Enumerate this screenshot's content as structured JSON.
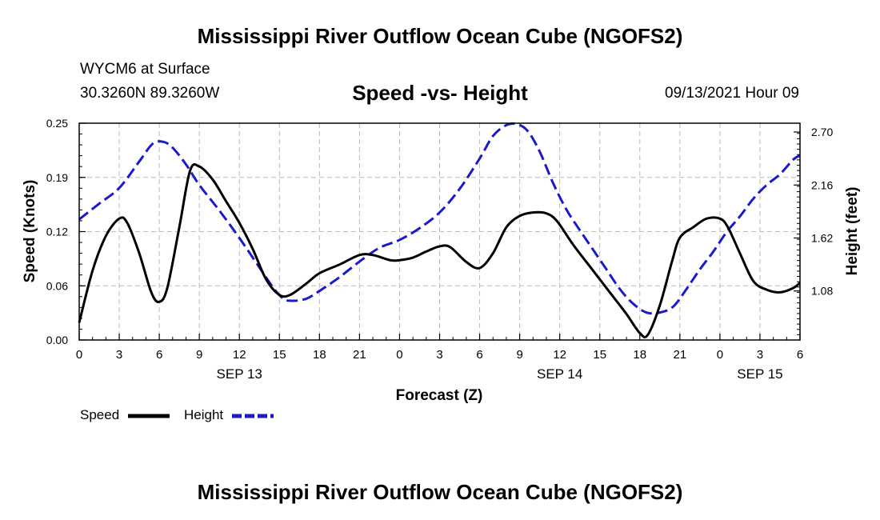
{
  "header": {
    "title": "Mississippi River Outflow Ocean Cube (NGOFS2)",
    "station": "WYCM6 at Surface",
    "coords": "30.3260N  89.3260W",
    "chart_title": "Speed -vs- Height",
    "datetime": "09/13/2021 Hour 09"
  },
  "footer": {
    "title": "Mississippi River Outflow Ocean Cube (NGOFS2)"
  },
  "legend": {
    "speed_label": "Speed",
    "height_label": "Height"
  },
  "colors": {
    "speed": "#000000",
    "height": "#1a1acc",
    "grid": "#bbbbbb"
  },
  "chart_data": {
    "type": "line",
    "title": "Speed -vs- Height",
    "xlabel": "Forecast (Z)",
    "ylabel": "Speed (Knots)",
    "ylabel_right": "Height (feet)",
    "x_range_hours": [
      0,
      54
    ],
    "ylim": [
      0.0,
      0.25
    ],
    "ylim_right": [
      0.58,
      2.79
    ],
    "x_ticks": [
      {
        "h": 0,
        "label": "0"
      },
      {
        "h": 3,
        "label": "3"
      },
      {
        "h": 6,
        "label": "6"
      },
      {
        "h": 9,
        "label": "9"
      },
      {
        "h": 12,
        "label": "12"
      },
      {
        "h": 15,
        "label": "15"
      },
      {
        "h": 18,
        "label": "18"
      },
      {
        "h": 21,
        "label": "21"
      },
      {
        "h": 24,
        "label": "0"
      },
      {
        "h": 27,
        "label": "3"
      },
      {
        "h": 30,
        "label": "6"
      },
      {
        "h": 33,
        "label": "9"
      },
      {
        "h": 36,
        "label": "12"
      },
      {
        "h": 39,
        "label": "15"
      },
      {
        "h": 42,
        "label": "18"
      },
      {
        "h": 45,
        "label": "21"
      },
      {
        "h": 48,
        "label": "0"
      },
      {
        "h": 51,
        "label": "3"
      },
      {
        "h": 54,
        "label": "6"
      }
    ],
    "date_labels": [
      {
        "h": 12,
        "label": "SEP 13"
      },
      {
        "h": 36,
        "label": "SEP 14"
      },
      {
        "h": 51,
        "label": "SEP 15"
      }
    ],
    "y_ticks": [
      "0.00",
      "0.06",
      "0.12",
      "0.19",
      "0.25"
    ],
    "y_tick_values": [
      0.0,
      0.0625,
      0.125,
      0.1875,
      0.25
    ],
    "y_ticks_right": [
      "1.08",
      "1.62",
      "2.16",
      "2.70"
    ],
    "y_tick_values_right": [
      1.08,
      1.62,
      2.16,
      2.7
    ],
    "series": [
      {
        "name": "Speed",
        "axis": "left",
        "style": "solid",
        "points": [
          [
            0,
            0.02
          ],
          [
            1,
            0.08
          ],
          [
            2,
            0.12
          ],
          [
            3,
            0.14
          ],
          [
            3.6,
            0.135
          ],
          [
            4.5,
            0.1
          ],
          [
            5.4,
            0.055
          ],
          [
            6,
            0.044
          ],
          [
            6.6,
            0.06
          ],
          [
            7.5,
            0.13
          ],
          [
            8.3,
            0.195
          ],
          [
            9,
            0.2
          ],
          [
            10,
            0.185
          ],
          [
            11,
            0.16
          ],
          [
            12,
            0.135
          ],
          [
            13,
            0.105
          ],
          [
            14,
            0.07
          ],
          [
            15,
            0.052
          ],
          [
            15.8,
            0.052
          ],
          [
            17,
            0.065
          ],
          [
            18,
            0.077
          ],
          [
            19.5,
            0.087
          ],
          [
            21,
            0.098
          ],
          [
            22,
            0.098
          ],
          [
            23.3,
            0.092
          ],
          [
            24,
            0.092
          ],
          [
            25,
            0.095
          ],
          [
            26,
            0.102
          ],
          [
            27,
            0.108
          ],
          [
            27.8,
            0.107
          ],
          [
            29,
            0.09
          ],
          [
            30,
            0.083
          ],
          [
            31,
            0.1
          ],
          [
            32,
            0.13
          ],
          [
            33,
            0.143
          ],
          [
            34,
            0.147
          ],
          [
            35,
            0.146
          ],
          [
            35.8,
            0.137
          ],
          [
            37,
            0.11
          ],
          [
            38.5,
            0.08
          ],
          [
            40,
            0.05
          ],
          [
            41,
            0.03
          ],
          [
            42,
            0.008
          ],
          [
            42.6,
            0.006
          ],
          [
            43.5,
            0.04
          ],
          [
            44.4,
            0.09
          ],
          [
            45,
            0.118
          ],
          [
            46,
            0.13
          ],
          [
            47,
            0.14
          ],
          [
            48,
            0.14
          ],
          [
            48.6,
            0.13
          ],
          [
            49.5,
            0.1
          ],
          [
            50.5,
            0.068
          ],
          [
            51.5,
            0.058
          ],
          [
            52.5,
            0.055
          ],
          [
            53.5,
            0.06
          ],
          [
            54,
            0.066
          ]
        ]
      },
      {
        "name": "Height",
        "axis": "right",
        "style": "dashed",
        "points": [
          [
            0,
            1.81
          ],
          [
            1.5,
            1.97
          ],
          [
            3,
            2.13
          ],
          [
            4.5,
            2.4
          ],
          [
            5.5,
            2.58
          ],
          [
            6.3,
            2.6
          ],
          [
            7,
            2.54
          ],
          [
            8,
            2.37
          ],
          [
            9,
            2.16
          ],
          [
            10.5,
            1.9
          ],
          [
            12,
            1.62
          ],
          [
            13.5,
            1.32
          ],
          [
            14.5,
            1.12
          ],
          [
            15.3,
            1.0
          ],
          [
            16,
            0.98
          ],
          [
            17,
            1.0
          ],
          [
            18,
            1.08
          ],
          [
            19.5,
            1.22
          ],
          [
            21,
            1.38
          ],
          [
            22.5,
            1.52
          ],
          [
            24,
            1.6
          ],
          [
            25.5,
            1.72
          ],
          [
            27,
            1.88
          ],
          [
            28.5,
            2.12
          ],
          [
            30,
            2.43
          ],
          [
            31,
            2.66
          ],
          [
            32,
            2.77
          ],
          [
            32.8,
            2.78
          ],
          [
            33.6,
            2.71
          ],
          [
            34.5,
            2.5
          ],
          [
            35.5,
            2.18
          ],
          [
            36.5,
            1.91
          ],
          [
            37.5,
            1.7
          ],
          [
            38.5,
            1.5
          ],
          [
            39.5,
            1.3
          ],
          [
            40.5,
            1.1
          ],
          [
            41.5,
            0.95
          ],
          [
            42.5,
            0.86
          ],
          [
            43.5,
            0.86
          ],
          [
            44.5,
            0.92
          ],
          [
            45.5,
            1.1
          ],
          [
            46.5,
            1.3
          ],
          [
            47.5,
            1.48
          ],
          [
            48.5,
            1.68
          ],
          [
            49.5,
            1.84
          ],
          [
            50.5,
            2.02
          ],
          [
            51.5,
            2.16
          ],
          [
            52.5,
            2.27
          ],
          [
            53.5,
            2.42
          ],
          [
            54,
            2.46
          ]
        ]
      }
    ]
  }
}
